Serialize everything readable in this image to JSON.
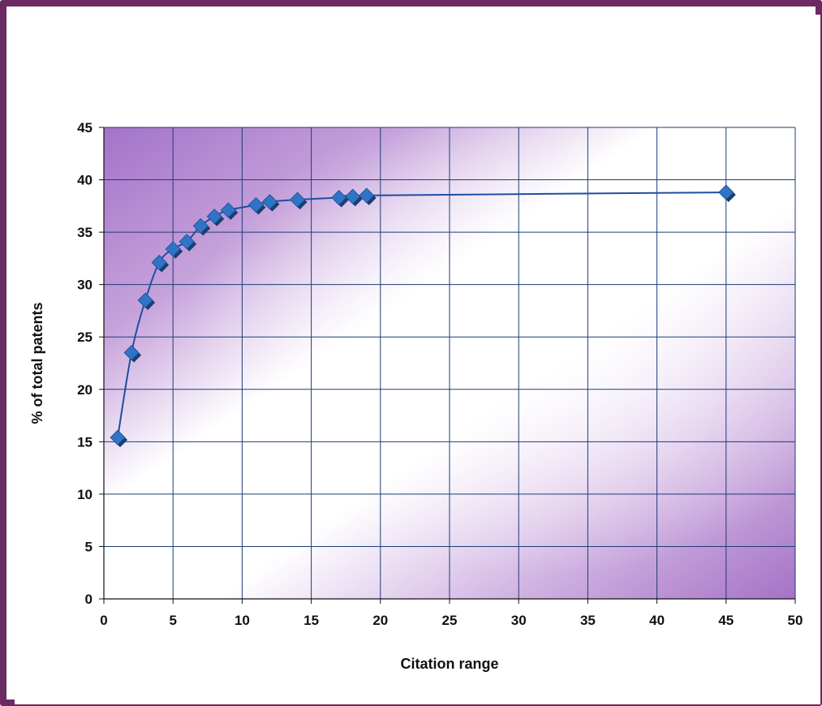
{
  "chart_data": {
    "type": "scatter",
    "title": "",
    "xlabel": "Citation range",
    "ylabel": "% of total patents",
    "xlim": [
      0,
      50
    ],
    "ylim": [
      0,
      45
    ],
    "xticks": [
      "0",
      "5",
      "10",
      "15",
      "20",
      "25",
      "30",
      "35",
      "40",
      "45",
      "50"
    ],
    "yticks": [
      "0",
      "5",
      "10",
      "15",
      "20",
      "25",
      "30",
      "35",
      "40",
      "45"
    ],
    "grid": true,
    "legend": "none",
    "series": [
      {
        "x": [
          1,
          2,
          3,
          4,
          5,
          6,
          7,
          8,
          9,
          11,
          12,
          14,
          17,
          18,
          19,
          45
        ],
        "y": [
          15.4,
          23.5,
          28.5,
          32.1,
          33.4,
          34.1,
          35.6,
          36.5,
          37.1,
          37.6,
          37.9,
          38.1,
          38.3,
          38.4,
          38.5,
          38.8
        ]
      }
    ],
    "colors": {
      "marker": "#2f74c7",
      "marker_dark": "#17406f",
      "line": "#1f4ea3",
      "grid": "#1c3d78",
      "plot_purple": "#a978cc",
      "frame": "#6b2a63"
    }
  }
}
